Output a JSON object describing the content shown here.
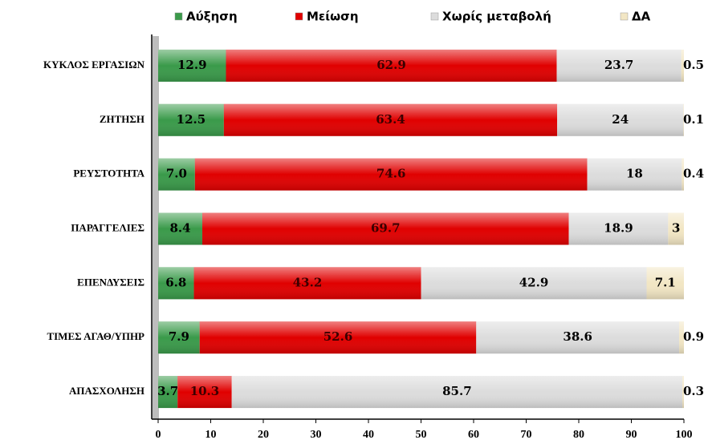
{
  "chart_data": {
    "type": "stacked-bar-horizontal",
    "categories": [
      "ΚΥΚΛΟΣ ΕΡΓΑΣΙΩΝ",
      "ΖΗΤΗΣΗ",
      "ΡΕΥΣΤΟΤΗΤΑ",
      "ΠΑΡΑΓΓΕΛΙΕΣ",
      "ΕΠΕΝΔΥΣΕΙΣ",
      "ΤΙΜΕΣ ΑΓΑΘ/ΥΠΗΡ",
      "ΑΠΑΣΧΟΛΗΣΗ"
    ],
    "series": [
      {
        "name": "Αύξηση",
        "color": "#3a9a4a",
        "values": [
          12.9,
          12.5,
          7.0,
          8.4,
          6.8,
          7.9,
          3.7
        ],
        "value_labels": [
          "12.9",
          "12.5",
          "7.0",
          "8.4",
          "6.8",
          "7.9",
          "3.7"
        ]
      },
      {
        "name": "Μείωση",
        "color": "#e00000",
        "values": [
          62.9,
          63.4,
          74.6,
          69.7,
          43.2,
          52.6,
          10.3
        ]
      },
      {
        "name": "Χωρίς μεταβολή",
        "color": "#dcdcdc",
        "values": [
          23.7,
          24,
          18,
          18.9,
          42.9,
          38.6,
          85.7
        ]
      },
      {
        "name": "ΔΑ",
        "color": "#f2e6c4",
        "values": [
          0.5,
          0.1,
          0.4,
          3,
          7.1,
          0.9,
          0.3
        ]
      }
    ],
    "xlim": [
      0,
      100
    ],
    "xticks": [
      0,
      10,
      20,
      30,
      40,
      50,
      60,
      70,
      80,
      90,
      100
    ]
  }
}
